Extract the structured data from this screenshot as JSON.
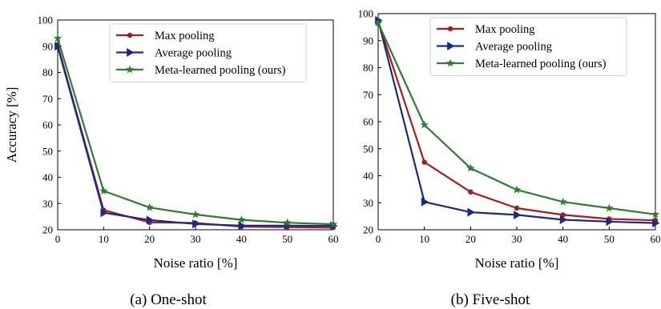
{
  "chart_data": [
    {
      "type": "line",
      "caption": "(a) One-shot",
      "xlabel": "Noise ratio [%]",
      "ylabel": "Accuracy [%]",
      "xlim": [
        0,
        60
      ],
      "ylim": [
        20,
        100
      ],
      "xticks": [
        0,
        10,
        20,
        30,
        40,
        50,
        60
      ],
      "yticks": [
        20,
        30,
        40,
        50,
        60,
        70,
        80,
        90,
        100
      ],
      "grid": false,
      "legend_position": "top-right",
      "x": [
        0,
        10,
        20,
        30,
        40,
        50,
        60
      ],
      "series": [
        {
          "name": "Max pooling",
          "color": "#a81c1c",
          "marker": "circle",
          "values": [
            90.5,
            27.5,
            22.8,
            22.6,
            21.2,
            21.0,
            20.8
          ]
        },
        {
          "name": "Average pooling",
          "color": "#172a8c",
          "marker": "triangle-right",
          "values": [
            90.0,
            26.5,
            23.7,
            22.2,
            21.6,
            21.6,
            21.5
          ]
        },
        {
          "name": "Meta-learned pooling (ours)",
          "color": "#2e7d2e",
          "marker": "star",
          "values": [
            93.0,
            34.8,
            28.5,
            25.8,
            23.8,
            22.7,
            22.1
          ]
        }
      ]
    },
    {
      "type": "line",
      "caption": "(b) Five-shot",
      "xlabel": "Noise ratio [%]",
      "ylabel": "",
      "xlim": [
        0,
        60
      ],
      "ylim": [
        20,
        100
      ],
      "xticks": [
        0,
        10,
        20,
        30,
        40,
        50,
        60
      ],
      "yticks": [
        20,
        30,
        40,
        50,
        60,
        70,
        80,
        90,
        100
      ],
      "grid": false,
      "legend_position": "top-right",
      "x": [
        0,
        10,
        20,
        30,
        40,
        50,
        60
      ],
      "series": [
        {
          "name": "Max pooling",
          "color": "#a81c1c",
          "marker": "circle",
          "values": [
            97.0,
            45.0,
            34.0,
            28.0,
            25.5,
            24.0,
            23.5
          ]
        },
        {
          "name": "Average pooling",
          "color": "#172a8c",
          "marker": "triangle-right",
          "values": [
            97.5,
            30.3,
            26.5,
            25.5,
            23.7,
            23.0,
            22.5
          ]
        },
        {
          "name": "Meta-learned pooling (ours)",
          "color": "#2e7d2e",
          "marker": "star",
          "values": [
            96.5,
            58.8,
            42.8,
            34.8,
            30.3,
            28.0,
            25.7
          ]
        }
      ]
    }
  ]
}
